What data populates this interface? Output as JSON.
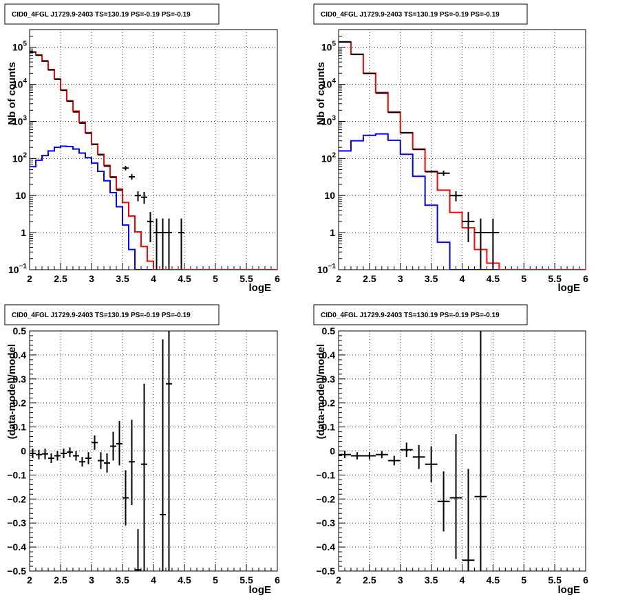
{
  "chart_data": [
    {
      "id": "tl",
      "type": "line",
      "title": "CID0_4FGL J1729.9-2403 TS=130.19 PS=-0.19 PS=-0.19",
      "xlabel": "logE",
      "ylabel": "Nb of counts",
      "xlim": [
        2,
        6
      ],
      "ylim": [
        0.1,
        300000
      ],
      "yscale": "log",
      "grid": true,
      "x_ticks": [
        "2",
        "2.5",
        "3",
        "3.5",
        "4",
        "4.5",
        "5",
        "5.5",
        "6"
      ],
      "y_ticks": [
        {
          "value": 0.1,
          "base": "10",
          "exp": "−1"
        },
        {
          "value": 1,
          "label": "1"
        },
        {
          "value": 10,
          "label": "10"
        },
        {
          "value": 100,
          "base": "10",
          "exp": "2"
        },
        {
          "value": 1000,
          "base": "10",
          "exp": "3"
        },
        {
          "value": 10000,
          "base": "10",
          "exp": "4"
        },
        {
          "value": 100000,
          "base": "10",
          "exp": "5"
        }
      ],
      "series": [
        {
          "kind": "step",
          "color": "#0000ff",
          "bin_edges_start": 2.0,
          "bin_width": 0.1,
          "values": [
            60,
            90,
            120,
            160,
            200,
            215,
            210,
            180,
            140,
            105,
            75,
            45,
            25,
            12,
            5,
            1.6,
            0.35,
            0.1,
            0.1,
            0.1,
            0.1,
            0.1,
            0.1,
            0.1,
            0.1,
            0.1,
            0.1,
            0.1,
            0.1,
            0.1,
            0.1,
            0.1,
            0.1,
            0.1,
            0.1,
            0.1,
            0.1,
            0.1,
            0.1,
            0.1
          ]
        },
        {
          "kind": "step",
          "color": "#ff0000",
          "bin_edges_start": 2.0,
          "bin_width": 0.1,
          "values": [
            75000,
            62000,
            42000,
            25000,
            14000,
            7000,
            3600,
            1900,
            950,
            500,
            245,
            130,
            65,
            32,
            15,
            6.5,
            2.8,
            1.05,
            0.42,
            0.17,
            0.1,
            0.1,
            0.1,
            0.1,
            0.1,
            0.1,
            0.1,
            0.1,
            0.1,
            0.1,
            0.1,
            0.1,
            0.1,
            0.1,
            0.1,
            0.1,
            0.1,
            0.1,
            0.1,
            0.1
          ]
        },
        {
          "kind": "points",
          "color": "#000000",
          "half_width": 0.05,
          "points": [
            [
              2.05,
              74000,
              74000,
              74000
            ],
            [
              2.15,
              61000,
              61000,
              61000
            ],
            [
              2.25,
              43000,
              43000,
              43000
            ],
            [
              2.35,
              24500,
              24500,
              24500
            ],
            [
              2.45,
              13800,
              13800,
              13800
            ],
            [
              2.55,
              6900,
              6900,
              6900
            ],
            [
              2.65,
              3500,
              3500,
              3500
            ],
            [
              2.75,
              1800,
              1800,
              1800
            ],
            [
              2.85,
              900,
              900,
              900
            ],
            [
              2.95,
              480,
              480,
              480
            ],
            [
              3.05,
              240,
              240,
              240
            ],
            [
              3.15,
              125,
              125,
              125
            ],
            [
              3.25,
              62,
              62,
              62
            ],
            [
              3.35,
              31,
              31,
              31
            ],
            [
              3.45,
              14,
              14,
              14
            ],
            [
              3.55,
              55,
              48,
              63
            ],
            [
              3.65,
              32,
              27,
              38
            ],
            [
              3.75,
              10,
              7,
              13
            ],
            [
              3.85,
              9,
              6,
              12.5
            ],
            [
              3.95,
              2,
              0.55,
              3.6
            ],
            [
              4.05,
              1,
              0.1,
              2.4
            ],
            [
              4.15,
              1,
              0.1,
              2.4
            ],
            [
              4.25,
              1,
              0.1,
              2.4
            ],
            [
              4.45,
              1,
              0.1,
              2.4
            ]
          ]
        }
      ]
    },
    {
      "id": "tr",
      "type": "line",
      "title": "CID0_4FGL J1729.9-2403 TS=130.19 PS=-0.19 PS=-0.19",
      "xlabel": "logE",
      "ylabel": "Nb of counts",
      "xlim": [
        2,
        6
      ],
      "ylim": [
        0.1,
        300000
      ],
      "yscale": "log",
      "grid": true,
      "x_ticks": [
        "2",
        "2.5",
        "3",
        "3.5",
        "4",
        "4.5",
        "5",
        "5.5",
        "6"
      ],
      "y_ticks": [
        {
          "value": 0.1,
          "base": "10",
          "exp": "−1"
        },
        {
          "value": 1,
          "label": "1"
        },
        {
          "value": 10,
          "label": "10"
        },
        {
          "value": 100,
          "base": "10",
          "exp": "2"
        },
        {
          "value": 1000,
          "base": "10",
          "exp": "3"
        },
        {
          "value": 10000,
          "base": "10",
          "exp": "4"
        },
        {
          "value": 100000,
          "base": "10",
          "exp": "5"
        }
      ],
      "series": [
        {
          "kind": "step",
          "color": "#0000ff",
          "bin_edges_start": 2.0,
          "bin_width": 0.2,
          "values": [
            160,
            300,
            420,
            460,
            310,
            130,
            33,
            5.5,
            0.55,
            0.1,
            0.1,
            0.1,
            0.1,
            0.1,
            0.1,
            0.1,
            0.1,
            0.1,
            0.1,
            0.1
          ]
        },
        {
          "kind": "step",
          "color": "#ff0000",
          "bin_edges_start": 2.0,
          "bin_width": 0.2,
          "values": [
            140000,
            65000,
            20000,
            6000,
            1800,
            500,
            180,
            45,
            14,
            3.5,
            1.35,
            0.35,
            0.15,
            0.1,
            0.1,
            0.1,
            0.1,
            0.1,
            0.1,
            0.1
          ]
        },
        {
          "kind": "points",
          "color": "#000000",
          "half_width": 0.1,
          "points": [
            [
              2.1,
              140000,
              140000,
              140000
            ],
            [
              2.3,
              64000,
              64000,
              64000
            ],
            [
              2.5,
              19500,
              19500,
              19500
            ],
            [
              2.7,
              5800,
              5800,
              5800
            ],
            [
              2.9,
              1750,
              1750,
              1750
            ],
            [
              3.1,
              490,
              490,
              490
            ],
            [
              3.3,
              175,
              175,
              175
            ],
            [
              3.5,
              44,
              44,
              44
            ],
            [
              3.7,
              40,
              34,
              47
            ],
            [
              3.9,
              10,
              7,
              13
            ],
            [
              4.1,
              2,
              0.55,
              3.6
            ],
            [
              4.3,
              1,
              0.1,
              2.4
            ],
            [
              4.5,
              1,
              0.1,
              2.4
            ]
          ]
        }
      ]
    },
    {
      "id": "bl",
      "type": "scatter",
      "title": "CID0_4FGL J1729.9-2403 TS=130.19 PS=-0.19 PS=-0.19",
      "xlabel": "logE",
      "ylabel": "(data-model)/model",
      "xlim": [
        2,
        6
      ],
      "ylim": [
        -0.5,
        0.5
      ],
      "yscale": "linear",
      "grid": true,
      "x_ticks": [
        "2",
        "2.5",
        "3",
        "3.5",
        "4",
        "4.5",
        "5",
        "5.5",
        "6"
      ],
      "y_ticks": [
        {
          "value": -0.5,
          "label": "−0.5"
        },
        {
          "value": -0.4,
          "label": "−0.4"
        },
        {
          "value": -0.3,
          "label": "−0.3"
        },
        {
          "value": -0.2,
          "label": "−0.2"
        },
        {
          "value": -0.1,
          "label": "−0.1"
        },
        {
          "value": 0,
          "label": "0"
        },
        {
          "value": 0.1,
          "label": "0.1"
        },
        {
          "value": 0.2,
          "label": "0.2"
        },
        {
          "value": 0.3,
          "label": "0.3"
        },
        {
          "value": 0.4,
          "label": "0.4"
        },
        {
          "value": 0.5,
          "label": "0.5"
        }
      ],
      "series": [
        {
          "kind": "points",
          "color": "#000000",
          "half_width": 0.05,
          "points": [
            [
              2.05,
              -0.01,
              -0.03,
              0.01
            ],
            [
              2.15,
              -0.015,
              -0.035,
              0.005
            ],
            [
              2.25,
              -0.012,
              -0.035,
              0.01
            ],
            [
              2.35,
              -0.03,
              -0.05,
              -0.01
            ],
            [
              2.45,
              -0.02,
              -0.04,
              0.0
            ],
            [
              2.55,
              -0.01,
              -0.03,
              0.01
            ],
            [
              2.65,
              -0.005,
              -0.025,
              0.015
            ],
            [
              2.75,
              -0.02,
              -0.04,
              0.0
            ],
            [
              2.85,
              -0.045,
              -0.065,
              -0.025
            ],
            [
              2.95,
              -0.03,
              -0.055,
              -0.005
            ],
            [
              3.05,
              0.035,
              0.005,
              0.065
            ],
            [
              3.15,
              -0.04,
              -0.075,
              -0.005
            ],
            [
              3.25,
              -0.05,
              -0.09,
              -0.01
            ],
            [
              3.35,
              0.02,
              -0.04,
              0.08
            ],
            [
              3.45,
              0.03,
              -0.06,
              0.125
            ],
            [
              3.55,
              -0.195,
              -0.31,
              -0.08
            ],
            [
              3.65,
              -0.045,
              -0.225,
              0.13
            ],
            [
              3.75,
              -0.495,
              -0.5,
              -0.325
            ],
            [
              3.85,
              -0.055,
              -0.5,
              0.28
            ],
            [
              4.15,
              -0.265,
              -0.5,
              0.465
            ],
            [
              4.25,
              0.28,
              -0.5,
              0.5
            ]
          ]
        }
      ]
    },
    {
      "id": "br",
      "type": "scatter",
      "title": "CID0_4FGL J1729.9-2403 TS=130.19 PS=-0.19 PS=-0.19",
      "xlabel": "logE",
      "ylabel": "(data-model)/model",
      "xlim": [
        2,
        6
      ],
      "ylim": [
        -0.5,
        0.5
      ],
      "yscale": "linear",
      "grid": true,
      "x_ticks": [
        "2",
        "2.5",
        "3",
        "3.5",
        "4",
        "4.5",
        "5",
        "5.5",
        "6"
      ],
      "y_ticks": [
        {
          "value": -0.5,
          "label": "−0.5"
        },
        {
          "value": -0.4,
          "label": "−0.4"
        },
        {
          "value": -0.3,
          "label": "−0.3"
        },
        {
          "value": -0.2,
          "label": "−0.2"
        },
        {
          "value": -0.1,
          "label": "−0.1"
        },
        {
          "value": 0,
          "label": "0"
        },
        {
          "value": 0.1,
          "label": "0.1"
        },
        {
          "value": 0.2,
          "label": "0.2"
        },
        {
          "value": 0.3,
          "label": "0.3"
        },
        {
          "value": 0.4,
          "label": "0.4"
        },
        {
          "value": 0.5,
          "label": "0.5"
        }
      ],
      "series": [
        {
          "kind": "points",
          "color": "#000000",
          "half_width": 0.1,
          "points": [
            [
              2.1,
              -0.015,
              -0.03,
              0.0
            ],
            [
              2.3,
              -0.02,
              -0.035,
              -0.005
            ],
            [
              2.5,
              -0.02,
              -0.035,
              -0.005
            ],
            [
              2.7,
              -0.015,
              -0.03,
              0.0
            ],
            [
              2.9,
              -0.04,
              -0.06,
              -0.02
            ],
            [
              3.1,
              0.005,
              -0.025,
              0.035
            ],
            [
              3.3,
              -0.025,
              -0.075,
              0.025
            ],
            [
              3.5,
              -0.055,
              -0.13,
              0.02
            ],
            [
              3.7,
              -0.21,
              -0.335,
              -0.085
            ],
            [
              3.9,
              -0.195,
              -0.45,
              0.07
            ],
            [
              4.1,
              -0.455,
              -0.5,
              -0.075
            ],
            [
              4.3,
              -0.19,
              -0.5,
              0.5
            ]
          ]
        }
      ]
    }
  ]
}
